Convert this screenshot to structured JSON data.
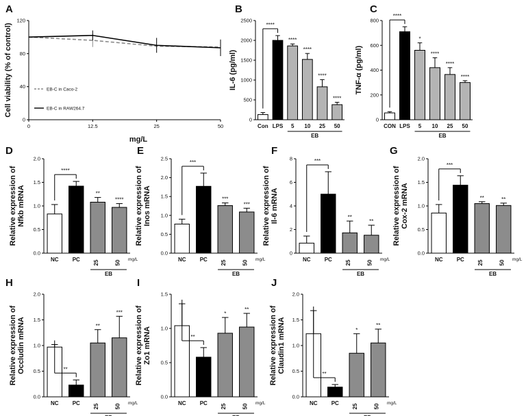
{
  "colors": {
    "white": "#ffffff",
    "black": "#000000",
    "gray": "#8c8c8c",
    "lightgray": "#b4b4b4",
    "dash": "#8a8a8a",
    "axis": "#000000"
  },
  "chart_data": [
    {
      "id": "A",
      "type": "line",
      "letter": "A",
      "xlabel": "mg/L",
      "ylabel": "Cell viability (% of control)",
      "x": [
        0,
        12.5,
        25,
        50
      ],
      "x_ticks": [
        "0",
        "12.5",
        "25",
        "50"
      ],
      "ylim": [
        0,
        120
      ],
      "y_ticks": [
        "0",
        "40",
        "80",
        "120"
      ],
      "series": [
        {
          "name": "EB-C in Caco-2",
          "style": "dashed",
          "values": [
            100,
            96,
            89,
            88
          ],
          "err": [
            0,
            8,
            0,
            0
          ]
        },
        {
          "name": "EB-C in RAW264.7",
          "style": "solid",
          "values": [
            100,
            102,
            90,
            87
          ],
          "err": [
            0,
            6,
            9,
            10
          ]
        }
      ]
    },
    {
      "id": "B",
      "type": "bar",
      "letter": "B",
      "ylabel": "IL-6 (pg/ml)",
      "ylim": [
        0,
        2500
      ],
      "y_ticks": [
        "0",
        "500",
        "1000",
        "1500",
        "2000",
        "2500"
      ],
      "categories": [
        "Con",
        "LPS",
        "5",
        "10",
        "25",
        "50"
      ],
      "values": [
        130,
        2000,
        1860,
        1520,
        830,
        380
      ],
      "errors": [
        50,
        120,
        50,
        150,
        180,
        60
      ],
      "colors": [
        "white",
        "black",
        "lightgray",
        "lightgray",
        "lightgray",
        "lightgray"
      ],
      "sig_over_bars": [
        "",
        "",
        "****",
        "****",
        "****",
        "****"
      ],
      "bracket": {
        "from": 0,
        "to": 1,
        "label": "****"
      },
      "group": {
        "label": "EB",
        "from": 2,
        "to": 5
      }
    },
    {
      "id": "C",
      "type": "bar",
      "letter": "C",
      "ylabel": "TNF-α (pg/ml)",
      "ylim": [
        0,
        800
      ],
      "y_ticks": [
        "0",
        "200",
        "400",
        "600",
        "800"
      ],
      "categories": [
        "CON",
        "LPS",
        "5",
        "10",
        "25",
        "50"
      ],
      "values": [
        55,
        710,
        560,
        420,
        365,
        300
      ],
      "errors": [
        10,
        40,
        60,
        80,
        55,
        15
      ],
      "colors": [
        "white",
        "black",
        "lightgray",
        "lightgray",
        "lightgray",
        "lightgray"
      ],
      "sig_over_bars": [
        "",
        "",
        "*",
        "****",
        "****",
        "****"
      ],
      "bracket": {
        "from": 0,
        "to": 1,
        "label": "****"
      },
      "group": {
        "label": "EB",
        "from": 2,
        "to": 5
      }
    },
    {
      "id": "D",
      "type": "bar",
      "letter": "D",
      "ylabel": "Relative expression of Nfkb mRNA",
      "ylim": [
        0,
        2.0
      ],
      "y_ticks": [
        "0.0",
        "0.5",
        "1.0",
        "1.5",
        "2.0"
      ],
      "categories": [
        "NC",
        "PC",
        "25",
        "50"
      ],
      "values": [
        0.83,
        1.42,
        1.08,
        0.97
      ],
      "errors": [
        0.2,
        0.1,
        0.1,
        0.08
      ],
      "colors": [
        "white",
        "black",
        "gray",
        "gray"
      ],
      "sig_over_bars": [
        "",
        "",
        "**",
        "****"
      ],
      "bracket": {
        "from": 0,
        "to": 1,
        "label": "****"
      },
      "group": {
        "label": "EB",
        "from": 2,
        "to": 3
      },
      "unit": "mg/L"
    },
    {
      "id": "E",
      "type": "bar",
      "letter": "E",
      "ylabel": "Relative expression of Inos mRNA",
      "ylim": [
        0,
        2.5
      ],
      "y_ticks": [
        "0.0",
        "0.5",
        "1.0",
        "1.5",
        "2.0",
        "2.5"
      ],
      "categories": [
        "NC",
        "PC",
        "25",
        "50"
      ],
      "values": [
        0.77,
        1.77,
        1.26,
        1.09
      ],
      "errors": [
        0.13,
        0.35,
        0.07,
        0.1
      ],
      "colors": [
        "white",
        "black",
        "gray",
        "gray"
      ],
      "sig_over_bars": [
        "",
        "",
        "***",
        "***"
      ],
      "bracket": {
        "from": 0,
        "to": 1,
        "label": "***"
      },
      "group": {
        "label": "EB",
        "from": 2,
        "to": 3
      },
      "unit": "mg/L"
    },
    {
      "id": "F",
      "type": "bar",
      "letter": "F",
      "ylabel": "Relative expression of Il-6 mRNA",
      "ylim": [
        0,
        8
      ],
      "y_ticks": [
        "0",
        "2",
        "4",
        "6",
        "8"
      ],
      "categories": [
        "NC",
        "PC",
        "25",
        "50"
      ],
      "values": [
        0.85,
        5.0,
        1.72,
        1.52
      ],
      "errors": [
        0.6,
        1.9,
        1.0,
        0.85
      ],
      "colors": [
        "white",
        "black",
        "gray",
        "gray"
      ],
      "sig_over_bars": [
        "",
        "",
        "**",
        "**"
      ],
      "bracket": {
        "from": 0,
        "to": 1,
        "label": "***"
      },
      "group": {
        "label": "EB",
        "from": 2,
        "to": 3
      },
      "unit": "mg/L"
    },
    {
      "id": "G",
      "type": "bar",
      "letter": "G",
      "ylabel": "Relative expression of Cox-2 mRNA",
      "ylim": [
        0,
        2.0
      ],
      "y_ticks": [
        "0.0",
        "0.5",
        "1.0",
        "1.5",
        "2.0"
      ],
      "categories": [
        "NC",
        "PC",
        "25",
        "50"
      ],
      "values": [
        0.85,
        1.44,
        1.05,
        1.01
      ],
      "errors": [
        0.18,
        0.2,
        0.04,
        0.05
      ],
      "colors": [
        "white",
        "black",
        "gray",
        "gray"
      ],
      "sig_over_bars": [
        "",
        "",
        "**",
        "**"
      ],
      "bracket": {
        "from": 0,
        "to": 1,
        "label": "***"
      },
      "group": {
        "label": "EB",
        "from": 2,
        "to": 3
      },
      "unit": "mg/L"
    },
    {
      "id": "H",
      "type": "bar",
      "letter": "H",
      "ylabel": "Relative expression of Occludin mRNA",
      "ylim": [
        0,
        2.0
      ],
      "y_ticks": [
        "0.0",
        "0.5",
        "1.0",
        "1.5",
        "2.0"
      ],
      "categories": [
        "NC",
        "PC",
        "25",
        "50"
      ],
      "values": [
        0.97,
        0.23,
        1.05,
        1.15
      ],
      "errors": [
        0.05,
        0.1,
        0.26,
        0.42
      ],
      "colors": [
        "white",
        "black",
        "gray",
        "gray"
      ],
      "sig_over_bars": [
        "",
        "",
        "**",
        "***"
      ],
      "bracket": {
        "from": 0,
        "to": 1,
        "label": "**"
      },
      "group": {
        "label": "EB",
        "from": 2,
        "to": 3
      },
      "unit": "mg/L"
    },
    {
      "id": "I",
      "type": "bar",
      "letter": "I",
      "ylabel": "Relative expression of Zo1 mRNA",
      "ylim": [
        0,
        1.5
      ],
      "y_ticks": [
        "0.0",
        "0.5",
        "1.0",
        "1.5"
      ],
      "categories": [
        "NC",
        "PC",
        "25",
        "50"
      ],
      "values": [
        1.04,
        0.58,
        0.93,
        1.02
      ],
      "errors": [
        0.32,
        0.14,
        0.23,
        0.2
      ],
      "colors": [
        "white",
        "black",
        "gray",
        "gray"
      ],
      "sig_over_bars": [
        "",
        "",
        "*",
        "**"
      ],
      "bracket": {
        "from": 0,
        "to": 1,
        "label": "**"
      },
      "group": {
        "label": "EB",
        "from": 2,
        "to": 3
      },
      "unit": "mg/L"
    },
    {
      "id": "J",
      "type": "bar",
      "letter": "J",
      "ylabel": "Relative expression of Claudin1 mRNA",
      "ylim": [
        0,
        2.0
      ],
      "y_ticks": [
        "0.0",
        "0.5",
        "1.0",
        "1.5",
        "2.0"
      ],
      "categories": [
        "NC",
        "PC",
        "25",
        "50"
      ],
      "values": [
        1.23,
        0.19,
        0.85,
        1.05
      ],
      "errors": [
        0.45,
        0.05,
        0.38,
        0.27
      ],
      "colors": [
        "white",
        "black",
        "gray",
        "gray"
      ],
      "sig_over_bars": [
        "",
        "",
        "*",
        "**"
      ],
      "bracket": {
        "from": 0,
        "to": 1,
        "label": "**"
      },
      "group": {
        "label": "EB",
        "from": 2,
        "to": 3
      },
      "unit": "mg/L"
    }
  ]
}
